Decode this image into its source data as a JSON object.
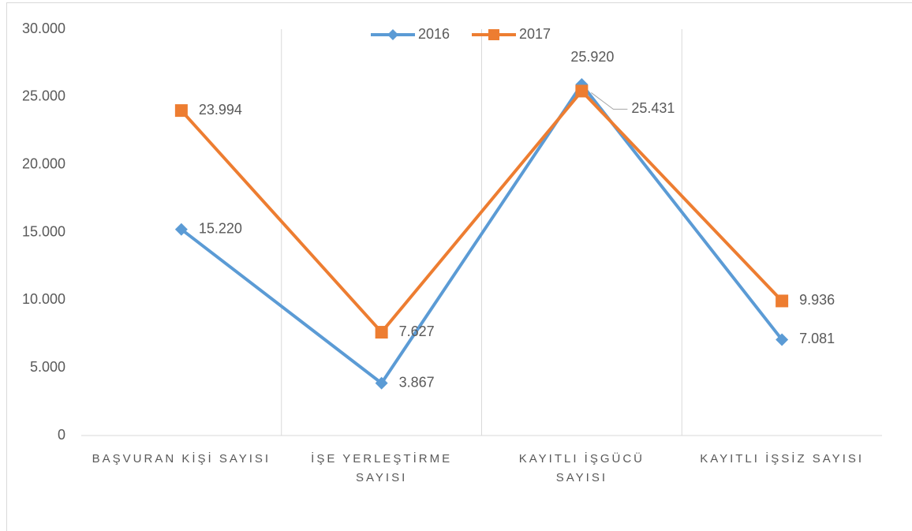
{
  "chart_data": {
    "type": "line",
    "categories": [
      "BAŞVURAN KİŞİ SAYISI",
      "İŞE YERLEŞTİRME SAYISI",
      "KAYITLI İŞGÜCÜ SAYISI",
      "KAYITLI İŞSİZ SAYISI"
    ],
    "series": [
      {
        "name": "2016",
        "color": "#5b9bd5",
        "marker": "diamond",
        "values": [
          15220,
          3867,
          25920,
          7081
        ],
        "value_labels": [
          "15.220",
          "3.867",
          "25.920",
          "7.081"
        ]
      },
      {
        "name": "2017",
        "color": "#ed7d31",
        "marker": "square",
        "values": [
          23994,
          7627,
          25431,
          9936
        ],
        "value_labels": [
          "23.994",
          "7.627",
          "25.431",
          "9.936"
        ]
      }
    ],
    "ylim": [
      0,
      30000
    ],
    "yticks": [
      0,
      {
        "value": 5000,
        "label": "5.000"
      },
      {
        "value": 10000,
        "label": "10.000"
      },
      {
        "value": 15000,
        "label": "15.000"
      },
      {
        "value": 20000,
        "label": "20.000"
      },
      {
        "value": 25000,
        "label": "25.000"
      },
      {
        "value": 30000,
        "label": "30.000"
      }
    ],
    "legend": "top"
  }
}
